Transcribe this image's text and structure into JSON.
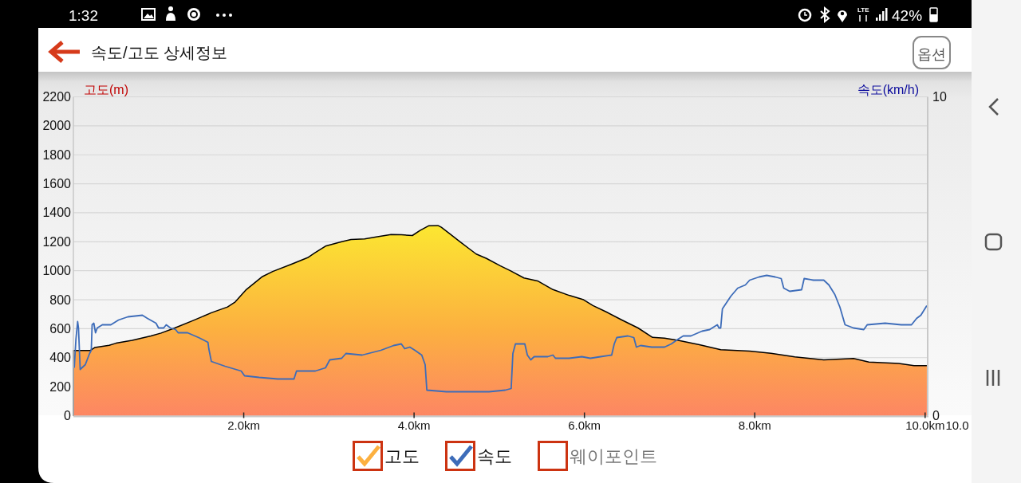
{
  "chart_data": {
    "type": "area",
    "title": "속도/고도 상세정보",
    "ylabel": "고도(m)",
    "y2label": "속도(km/h)",
    "xlim": [
      0,
      10.03
    ],
    "xticks": [
      {
        "value": 2,
        "label": "2.0km"
      },
      {
        "value": 4,
        "label": "4.0km"
      },
      {
        "value": 6,
        "label": "6.0km"
      },
      {
        "value": 8,
        "label": "8.0km"
      },
      {
        "value": 10,
        "label": "10.0km"
      }
    ],
    "ylim": [
      0,
      2200
    ],
    "yticks": [
      0,
      200,
      400,
      600,
      800,
      1000,
      1200,
      1400,
      1600,
      1800,
      2000,
      2200
    ],
    "y2lim": [
      0,
      10
    ],
    "y2ticks": [
      0,
      10
    ],
    "grid": "y",
    "legend": "bottom",
    "series": [
      {
        "name": "고도",
        "color": "#fcb040",
        "x": [
          0,
          0.2,
          0.25,
          0.42,
          0.5,
          0.69,
          0.91,
          1.03,
          1.19,
          1.4,
          1.62,
          1.81,
          1.9,
          2.03,
          2.22,
          2.34,
          2.56,
          2.75,
          2.84,
          2.96,
          3.15,
          3.26,
          3.42,
          3.57,
          3.73,
          3.85,
          3.98,
          4.07,
          4.17,
          4.28,
          4.32,
          4.42,
          4.54,
          4.64,
          4.73,
          4.85,
          5.01,
          5.13,
          5.29,
          5.45,
          5.63,
          5.82,
          5.99,
          6.1,
          6.26,
          6.44,
          6.63,
          6.8,
          6.94,
          7.1,
          7.35,
          7.6,
          7.94,
          8.19,
          8.47,
          8.81,
          9.16,
          9.34,
          9.69,
          9.87,
          10.02
        ],
        "values": [
          450,
          450,
          470,
          485,
          500,
          520,
          550,
          570,
          605,
          655,
          710,
          750,
          785,
          870,
          960,
          995,
          1045,
          1090,
          1125,
          1170,
          1200,
          1215,
          1220,
          1235,
          1250,
          1248,
          1243,
          1278,
          1310,
          1312,
          1300,
          1255,
          1200,
          1155,
          1115,
          1085,
          1035,
          1000,
          950,
          930,
          870,
          830,
          800,
          760,
          715,
          660,
          605,
          540,
          535,
          520,
          490,
          455,
          445,
          430,
          405,
          385,
          395,
          370,
          360,
          345,
          345
        ]
      },
      {
        "name": "속도",
        "type": "line",
        "axis": "y2",
        "color": "#3d6cb9",
        "x": [
          0.01,
          0.03,
          0.05,
          0.06,
          0.08,
          0.14,
          0.19,
          0.21,
          0.22,
          0.24,
          0.26,
          0.28,
          0.34,
          0.44,
          0.53,
          0.64,
          0.81,
          0.87,
          0.97,
          1.0,
          1.06,
          1.09,
          1.14,
          1.2,
          1.23,
          1.34,
          1.47,
          1.58,
          1.59,
          1.62,
          1.78,
          1.97,
          2.01,
          2.18,
          2.4,
          2.59,
          2.62,
          2.84,
          2.96,
          3.01,
          3.15,
          3.2,
          3.39,
          3.61,
          3.76,
          3.85,
          3.89,
          3.95,
          4.01,
          4.09,
          4.13,
          4.15,
          4.38,
          4.64,
          4.88,
          5.07,
          5.14,
          5.16,
          5.19,
          5.3,
          5.33,
          5.37,
          5.41,
          5.57,
          5.63,
          5.66,
          5.82,
          5.97,
          6.07,
          6.19,
          6.32,
          6.35,
          6.38,
          6.51,
          6.58,
          6.61,
          6.66,
          6.79,
          6.94,
          7.02,
          7.1,
          7.16,
          7.25,
          7.38,
          7.47,
          7.56,
          7.58,
          7.6,
          7.62,
          7.72,
          7.8,
          7.89,
          7.94,
          8.05,
          8.14,
          8.24,
          8.31,
          8.34,
          8.41,
          8.55,
          8.58,
          8.69,
          8.81,
          8.87,
          8.94,
          9.0,
          9.06,
          9.16,
          9.28,
          9.32,
          9.53,
          9.72,
          9.84,
          9.9,
          9.95,
          10.02
        ],
        "values": [
          1.5,
          2.4,
          2.95,
          2.75,
          1.45,
          1.6,
          1.95,
          2.05,
          2.85,
          2.9,
          2.6,
          2.75,
          2.85,
          2.85,
          3.0,
          3.1,
          3.15,
          3.05,
          2.9,
          2.75,
          2.75,
          2.85,
          2.75,
          2.7,
          2.6,
          2.6,
          2.45,
          2.3,
          2.1,
          1.7,
          1.55,
          1.4,
          1.25,
          1.2,
          1.15,
          1.15,
          1.4,
          1.4,
          1.5,
          1.75,
          1.8,
          1.95,
          1.9,
          2.05,
          2.2,
          2.25,
          2.1,
          2.15,
          2.05,
          1.9,
          1.6,
          0.8,
          0.75,
          0.75,
          0.75,
          0.8,
          0.85,
          1.95,
          2.25,
          2.25,
          1.9,
          1.75,
          1.85,
          1.85,
          1.9,
          1.8,
          1.8,
          1.85,
          1.8,
          1.85,
          1.9,
          2.25,
          2.45,
          2.5,
          2.45,
          2.15,
          2.2,
          2.15,
          2.15,
          2.25,
          2.4,
          2.5,
          2.5,
          2.65,
          2.7,
          2.85,
          2.75,
          2.75,
          3.35,
          3.75,
          4.0,
          4.1,
          4.25,
          4.35,
          4.4,
          4.35,
          4.3,
          4.0,
          3.9,
          3.95,
          4.3,
          4.25,
          4.25,
          4.1,
          3.8,
          3.4,
          2.85,
          2.75,
          2.7,
          2.85,
          2.9,
          2.85,
          2.85,
          3.05,
          3.15,
          3.45
        ]
      },
      {
        "name": "웨이포인트",
        "type": "scatter"
      }
    ],
    "annotations": [
      "1:32",
      "LTE",
      "42%",
      "옵션",
      "10.0"
    ]
  }
}
